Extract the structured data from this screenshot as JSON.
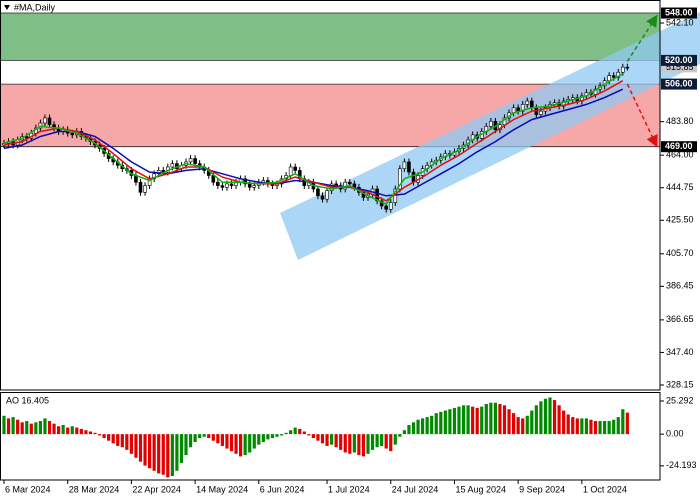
{
  "chart_data": [
    {
      "type": "candlestick",
      "title": "#MA,Daily",
      "open": [
        470,
        471,
        472,
        470,
        473,
        475,
        474,
        477,
        480,
        483,
        486,
        482,
        480,
        478,
        479,
        477,
        476,
        478,
        475,
        474,
        472,
        470,
        468,
        465,
        462,
        460,
        458,
        456,
        455,
        452,
        448,
        442,
        446,
        450,
        453,
        455,
        454,
        457,
        459,
        456,
        458,
        460,
        462,
        459,
        457,
        455,
        452,
        448,
        446,
        445,
        447,
        446,
        448,
        450,
        447,
        445,
        446,
        448,
        449,
        447,
        446,
        447,
        450,
        452,
        457,
        455,
        450,
        446,
        448,
        444,
        440,
        438,
        443,
        447,
        446,
        444,
        448,
        447,
        445,
        442,
        439,
        441,
        444,
        437,
        434,
        432,
        436,
        444,
        456,
        460,
        454,
        448,
        452,
        456,
        458,
        460,
        461,
        463,
        465,
        464,
        466,
        468,
        470,
        473,
        476,
        474,
        478,
        481,
        484,
        479,
        482,
        486,
        489,
        492,
        490,
        494,
        496,
        492,
        488,
        490,
        492,
        494,
        495,
        493,
        496,
        497,
        498,
        496,
        499,
        501,
        500,
        503,
        505,
        508,
        511,
        510,
        513,
        516
      ],
      "high": [
        473,
        474,
        474,
        475,
        477,
        477,
        479,
        482,
        485,
        488,
        488,
        484,
        482,
        481,
        481,
        479,
        480,
        480,
        477,
        476,
        474,
        472,
        470,
        467,
        464,
        462,
        460,
        458,
        457,
        454,
        450,
        448,
        452,
        455,
        457,
        457,
        459,
        461,
        461,
        460,
        462,
        464,
        464,
        461,
        459,
        457,
        454,
        450,
        448,
        449,
        449,
        450,
        452,
        452,
        449,
        448,
        450,
        451,
        451,
        449,
        449,
        452,
        454,
        459,
        459,
        457,
        452,
        450,
        450,
        446,
        442,
        445,
        449,
        449,
        448,
        450,
        450,
        449,
        447,
        444,
        443,
        446,
        446,
        439,
        436,
        438,
        446,
        458,
        462,
        462,
        456,
        454,
        458,
        460,
        462,
        463,
        465,
        467,
        467,
        468,
        470,
        472,
        475,
        478,
        478,
        480,
        483,
        486,
        486,
        484,
        488,
        491,
        494,
        494,
        496,
        498,
        498,
        494,
        492,
        494,
        496,
        497,
        497,
        498,
        499,
        500,
        500,
        501,
        503,
        503,
        505,
        507,
        510,
        513,
        513,
        515,
        518,
        518
      ],
      "low": [
        468,
        469,
        468,
        468,
        471,
        472,
        472,
        475,
        478,
        481,
        480,
        478,
        476,
        476,
        475,
        474,
        474,
        473,
        472,
        470,
        468,
        466,
        463,
        460,
        458,
        456,
        454,
        453,
        450,
        446,
        440,
        440,
        444,
        448,
        451,
        452,
        452,
        455,
        454,
        454,
        456,
        458,
        457,
        455,
        453,
        450,
        446,
        444,
        443,
        443,
        444,
        444,
        446,
        445,
        443,
        443,
        444,
        446,
        445,
        444,
        444,
        445,
        448,
        450,
        453,
        448,
        444,
        444,
        442,
        438,
        436,
        436,
        441,
        444,
        442,
        442,
        445,
        443,
        440,
        437,
        437,
        439,
        435,
        432,
        430,
        430,
        434,
        442,
        454,
        452,
        446,
        446,
        450,
        454,
        456,
        458,
        459,
        461,
        462,
        462,
        464,
        466,
        468,
        471,
        472,
        472,
        476,
        479,
        477,
        477,
        480,
        484,
        487,
        488,
        488,
        492,
        490,
        486,
        486,
        488,
        490,
        492,
        491,
        491,
        494,
        495,
        494,
        494,
        497,
        498,
        498,
        501,
        503,
        506,
        508,
        508,
        511,
        514
      ],
      "close": [
        471,
        472,
        470,
        473,
        475,
        474,
        477,
        480,
        483,
        486,
        482,
        480,
        478,
        479,
        477,
        476,
        478,
        475,
        474,
        472,
        470,
        468,
        465,
        462,
        460,
        458,
        456,
        455,
        452,
        448,
        442,
        446,
        450,
        453,
        455,
        454,
        457,
        459,
        456,
        458,
        460,
        462,
        459,
        457,
        455,
        452,
        448,
        446,
        445,
        447,
        446,
        448,
        450,
        447,
        445,
        446,
        448,
        449,
        447,
        446,
        447,
        450,
        452,
        457,
        455,
        450,
        446,
        448,
        444,
        440,
        438,
        443,
        447,
        446,
        444,
        448,
        447,
        445,
        442,
        439,
        441,
        444,
        437,
        434,
        432,
        436,
        444,
        456,
        460,
        454,
        448,
        452,
        456,
        458,
        460,
        461,
        463,
        465,
        464,
        466,
        468,
        470,
        473,
        476,
        474,
        478,
        481,
        484,
        479,
        482,
        486,
        489,
        492,
        490,
        494,
        496,
        492,
        488,
        490,
        492,
        494,
        495,
        493,
        496,
        497,
        498,
        496,
        499,
        501,
        500,
        503,
        505,
        508,
        511,
        510,
        513,
        516,
        515.85
      ],
      "ma_x": [
        0,
        4,
        8,
        12,
        16,
        20,
        24,
        28,
        32,
        36,
        40,
        44,
        48,
        52,
        56,
        60,
        64,
        68,
        72,
        76,
        80,
        84,
        88,
        92,
        96,
        100,
        104,
        108,
        112,
        116,
        120,
        124,
        128,
        132,
        136
      ],
      "series": [
        {
          "color": "#0a0ab4",
          "values": [
            468,
            470,
            475,
            478,
            478,
            475,
            468,
            460,
            454,
            453,
            455,
            456,
            453,
            450,
            448,
            447,
            449,
            448,
            446,
            445,
            443,
            440,
            441,
            447,
            453,
            459,
            466,
            472,
            479,
            485,
            488,
            491,
            494,
            498,
            503
          ]
        },
        {
          "color": "#e01010",
          "values": [
            470,
            472,
            478,
            480,
            478,
            473,
            465,
            456,
            450,
            453,
            457,
            457,
            451,
            448,
            447,
            447,
            451,
            448,
            445,
            445,
            442,
            437,
            445,
            451,
            458,
            464,
            471,
            478,
            485,
            490,
            492,
            494,
            497,
            502,
            508
          ]
        },
        {
          "color": "#10b010",
          "values": [
            471,
            474,
            481,
            480,
            477,
            471,
            462,
            453,
            449,
            455,
            459,
            457,
            448,
            448,
            447,
            448,
            453,
            446,
            444,
            446,
            440,
            435,
            450,
            454,
            462,
            467,
            475,
            481,
            489,
            492,
            493,
            496,
            499,
            506,
            512
          ]
        }
      ],
      "levels": [
        {
          "value": 548,
          "label": "548.00"
        },
        {
          "value": 520,
          "label": "520.00"
        },
        {
          "value": 506,
          "label": "506.00"
        },
        {
          "value": 469,
          "label": "469.00"
        }
      ],
      "zones": [
        {
          "levels": [
            0,
            1
          ],
          "color": "#7fbf86"
        },
        {
          "levels": [
            2,
            3
          ],
          "color": "#f6a8a8"
        }
      ],
      "last_price": 515.85,
      "ylim": [
        325.2,
        555.7
      ],
      "yticks": [
        {
          "value": 542.1,
          "label": "542.10"
        },
        {
          "value": 483.8,
          "label": "483.80"
        },
        {
          "value": 464,
          "label": "464.00"
        },
        444.75,
        {
          "value": 425.5,
          "label": "425.50"
        },
        {
          "value": 405.7,
          "label": "405.70"
        },
        386.45,
        366.65,
        {
          "value": 347.4,
          "label": "347.40"
        },
        328.15
      ]
    },
    {
      "type": "histogram",
      "title": "AO 16.405",
      "values": [
        14,
        12,
        13,
        11,
        9,
        10,
        8,
        9,
        10,
        12,
        10,
        8,
        6,
        7,
        5,
        6,
        5,
        4,
        3,
        2,
        1,
        -1,
        -3,
        -5,
        -7,
        -9,
        -10,
        -12,
        -15,
        -18,
        -21,
        -24,
        -26,
        -28,
        -30,
        -31,
        -33,
        -32,
        -28,
        -22,
        -16,
        -10,
        -6,
        -3,
        -2,
        -3,
        -5,
        -7,
        -9,
        -11,
        -13,
        -15,
        -17,
        -16,
        -14,
        -11,
        -8,
        -6,
        -4,
        -3,
        -2,
        -1,
        1,
        3,
        5,
        4,
        2,
        -1,
        -3,
        -5,
        -7,
        -9,
        -8,
        -10,
        -12,
        -14,
        -15,
        -14,
        -16,
        -17,
        -15,
        -12,
        -10,
        -9,
        -11,
        -13,
        -8,
        -2,
        3,
        7,
        9,
        11,
        12,
        13,
        14,
        16,
        17,
        18,
        19,
        20,
        21,
        22,
        22,
        21,
        20,
        21,
        23,
        24,
        24,
        23,
        22,
        19,
        16,
        13,
        12,
        14,
        18,
        22,
        25,
        27,
        28,
        26,
        22,
        18,
        15,
        13,
        12,
        12,
        12,
        11,
        10,
        10,
        10,
        10,
        11,
        13,
        19,
        16.405
      ],
      "up_color": "#008a00",
      "down_color": "#e00000",
      "ylim": [
        -35,
        31.4
      ],
      "yticks": [
        25.292,
        {
          "value": 0,
          "label": "0.00"
        },
        -24.193
      ],
      "xticks": [
        {
          "value": 0,
          "label": "6 Mar 2024"
        },
        {
          "value": 14,
          "label": "28 Mar 2024"
        },
        {
          "value": 28,
          "label": "22 Apr 2024"
        },
        {
          "value": 42,
          "label": "14 May 2024"
        },
        {
          "value": 56,
          "label": "6 Jun 2024"
        },
        {
          "value": 71,
          "label": "1 Jul 2024"
        },
        {
          "value": 85,
          "label": "24 Jul 2024"
        },
        {
          "value": 99,
          "label": "15 Aug 2024"
        },
        {
          "value": 113,
          "label": "9 Sep 2024"
        },
        {
          "value": 127,
          "label": "1 Oct 2024"
        }
      ]
    }
  ]
}
